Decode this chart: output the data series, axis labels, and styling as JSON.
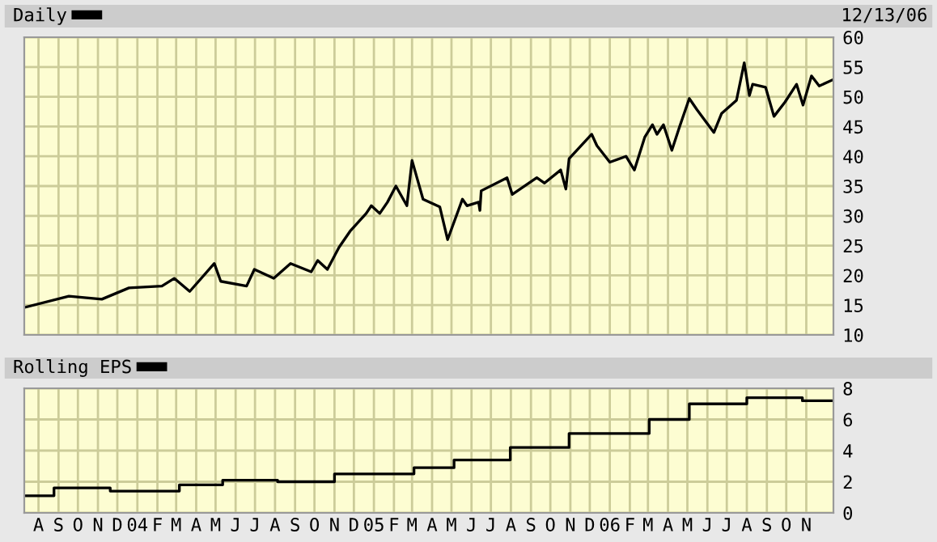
{
  "chart_data": [
    {
      "type": "line",
      "xlim": [
        "2003-07-10",
        "2006-12-13"
      ],
      "ylim": [
        10,
        60
      ],
      "yticks": [
        10,
        15,
        20,
        25,
        30,
        35,
        40,
        45,
        50,
        55,
        60
      ],
      "xticks": [
        {
          "value": "2003-08-01",
          "label": null
        },
        {
          "value": "2003-09-01",
          "label": null
        },
        {
          "value": "2003-10-01",
          "label": null
        },
        {
          "value": "2003-11-01",
          "label": null
        },
        {
          "value": "2003-12-01",
          "label": null
        },
        {
          "value": "2004-01-01",
          "label": null
        },
        {
          "value": "2004-02-01",
          "label": null
        },
        {
          "value": "2004-03-01",
          "label": null
        },
        {
          "value": "2004-04-01",
          "label": null
        },
        {
          "value": "2004-05-01",
          "label": null
        },
        {
          "value": "2004-06-01",
          "label": null
        },
        {
          "value": "2004-07-01",
          "label": null
        },
        {
          "value": "2004-08-01",
          "label": null
        },
        {
          "value": "2004-09-01",
          "label": null
        },
        {
          "value": "2004-10-01",
          "label": null
        },
        {
          "value": "2004-11-01",
          "label": null
        },
        {
          "value": "2004-12-01",
          "label": null
        },
        {
          "value": "2005-01-01",
          "label": null
        },
        {
          "value": "2005-02-01",
          "label": null
        },
        {
          "value": "2005-03-01",
          "label": null
        },
        {
          "value": "2005-04-01",
          "label": null
        },
        {
          "value": "2005-05-01",
          "label": null
        },
        {
          "value": "2005-06-01",
          "label": null
        },
        {
          "value": "2005-07-01",
          "label": null
        },
        {
          "value": "2005-08-01",
          "label": null
        },
        {
          "value": "2005-09-01",
          "label": null
        },
        {
          "value": "2005-10-01",
          "label": null
        },
        {
          "value": "2005-11-01",
          "label": null
        },
        {
          "value": "2005-12-01",
          "label": null
        },
        {
          "value": "2006-01-01",
          "label": null
        },
        {
          "value": "2006-02-01",
          "label": null
        },
        {
          "value": "2006-03-01",
          "label": null
        },
        {
          "value": "2006-04-01",
          "label": null
        },
        {
          "value": "2006-05-01",
          "label": null
        },
        {
          "value": "2006-06-01",
          "label": null
        },
        {
          "value": "2006-07-01",
          "label": null
        },
        {
          "value": "2006-08-01",
          "label": null
        },
        {
          "value": "2006-09-01",
          "label": null
        },
        {
          "value": "2006-10-01",
          "label": null
        },
        {
          "value": "2006-11-01",
          "label": null
        }
      ],
      "tick_labels": "y",
      "grid": true,
      "legend": "top left",
      "annotations": [
        "12/13/06"
      ],
      "series": [
        {
          "name": "Daily",
          "color": "#000000",
          "x": [
            "2003-07-10",
            "2003-09-17",
            "2003-11-07",
            "2003-12-19",
            "2004-02-08",
            "2004-02-27",
            "2004-03-22",
            "2004-04-29",
            "2004-05-09",
            "2004-06-18",
            "2004-06-30",
            "2004-07-30",
            "2004-08-25",
            "2004-09-26",
            "2004-10-06",
            "2004-10-21",
            "2004-11-08",
            "2004-11-25",
            "2004-12-20",
            "2004-12-28",
            "2005-01-10",
            "2005-01-22",
            "2005-02-04",
            "2005-02-21",
            "2005-03-01",
            "2005-03-18",
            "2005-04-13",
            "2005-04-25",
            "2005-05-18",
            "2005-05-25",
            "2005-06-12",
            "2005-06-14",
            "2005-06-16",
            "2005-07-26",
            "2005-08-03",
            "2005-09-10",
            "2005-09-22",
            "2005-10-17",
            "2005-10-25",
            "2005-10-30",
            "2005-12-04",
            "2005-12-12",
            "2006-01-01",
            "2006-01-26",
            "2006-02-08",
            "2006-02-24",
            "2006-03-08",
            "2006-03-15",
            "2006-03-25",
            "2006-04-07",
            "2006-04-19",
            "2006-05-04",
            "2006-05-16",
            "2006-06-11",
            "2006-06-23",
            "2006-07-16",
            "2006-07-28",
            "2006-08-05",
            "2006-08-10",
            "2006-08-30",
            "2006-09-12",
            "2006-09-29",
            "2006-10-17",
            "2006-10-27",
            "2006-11-09",
            "2006-11-21",
            "2006-12-13"
          ],
          "values": [
            14.6,
            16.5,
            16,
            17.9,
            18.2,
            19.5,
            17.3,
            22,
            19,
            18.2,
            21,
            19.5,
            22,
            20.6,
            22.5,
            21,
            24.7,
            27.4,
            30.4,
            31.7,
            30.4,
            32.3,
            35,
            31.7,
            39.3,
            32.8,
            31.5,
            26,
            32.8,
            31.7,
            32.3,
            30.9,
            34.2,
            36.4,
            33.6,
            36.4,
            35.5,
            37.7,
            34.5,
            39.6,
            43.7,
            41.8,
            39,
            40,
            37.7,
            43.2,
            45.3,
            43.7,
            45.3,
            41,
            45,
            49.7,
            47.8,
            44,
            47.2,
            49.4,
            55.7,
            50.2,
            52.1,
            51.6,
            46.7,
            49.1,
            52.1,
            48.6,
            53.5,
            51.8,
            52.9
          ]
        }
      ]
    },
    {
      "type": "step",
      "xlim": [
        "2003-07-10",
        "2006-12-13"
      ],
      "ylim": [
        0,
        8
      ],
      "yticks": [
        0,
        2,
        4,
        6,
        8
      ],
      "xticks": [
        {
          "value": "2003-08-01",
          "label": "A"
        },
        {
          "value": "2003-09-01",
          "label": "S"
        },
        {
          "value": "2003-10-01",
          "label": "O"
        },
        {
          "value": "2003-11-01",
          "label": "N"
        },
        {
          "value": "2003-12-01",
          "label": "D"
        },
        {
          "value": "2004-01-01",
          "label": "04"
        },
        {
          "value": "2004-02-01",
          "label": "F"
        },
        {
          "value": "2004-03-01",
          "label": "M"
        },
        {
          "value": "2004-04-01",
          "label": "A"
        },
        {
          "value": "2004-05-01",
          "label": "M"
        },
        {
          "value": "2004-06-01",
          "label": "J"
        },
        {
          "value": "2004-07-01",
          "label": "J"
        },
        {
          "value": "2004-08-01",
          "label": "A"
        },
        {
          "value": "2004-09-01",
          "label": "S"
        },
        {
          "value": "2004-10-01",
          "label": "O"
        },
        {
          "value": "2004-11-01",
          "label": "N"
        },
        {
          "value": "2004-12-01",
          "label": "D"
        },
        {
          "value": "2005-01-01",
          "label": "05"
        },
        {
          "value": "2005-02-01",
          "label": "F"
        },
        {
          "value": "2005-03-01",
          "label": "M"
        },
        {
          "value": "2005-04-01",
          "label": "A"
        },
        {
          "value": "2005-05-01",
          "label": "M"
        },
        {
          "value": "2005-06-01",
          "label": "J"
        },
        {
          "value": "2005-07-01",
          "label": "J"
        },
        {
          "value": "2005-08-01",
          "label": "A"
        },
        {
          "value": "2005-09-01",
          "label": "S"
        },
        {
          "value": "2005-10-01",
          "label": "O"
        },
        {
          "value": "2005-11-01",
          "label": "N"
        },
        {
          "value": "2005-12-01",
          "label": "D"
        },
        {
          "value": "2006-01-01",
          "label": "06"
        },
        {
          "value": "2006-02-01",
          "label": "F"
        },
        {
          "value": "2006-03-01",
          "label": "M"
        },
        {
          "value": "2006-04-01",
          "label": "A"
        },
        {
          "value": "2006-05-01",
          "label": "M"
        },
        {
          "value": "2006-06-01",
          "label": "J"
        },
        {
          "value": "2006-07-01",
          "label": "J"
        },
        {
          "value": "2006-08-01",
          "label": "A"
        },
        {
          "value": "2006-09-01",
          "label": "S"
        },
        {
          "value": "2006-10-01",
          "label": "O"
        },
        {
          "value": "2006-11-01",
          "label": "N"
        }
      ],
      "grid": true,
      "legend": "top left",
      "series": [
        {
          "name": "Rolling EPS",
          "color": "#000000",
          "x": [
            "2003-07-10",
            "2003-08-25",
            "2003-11-20",
            "2004-03-06",
            "2004-05-12",
            "2004-08-05",
            "2004-11-01",
            "2005-03-04",
            "2005-05-05",
            "2005-07-31",
            "2005-10-30",
            "2006-03-03",
            "2006-05-04",
            "2006-08-01",
            "2006-10-26",
            "2006-12-13"
          ],
          "values": [
            1.1,
            1.6,
            1.4,
            1.8,
            2.1,
            2.0,
            2.5,
            2.9,
            3.4,
            4.2,
            5.1,
            6.0,
            7.0,
            7.4,
            7.2,
            7.2
          ]
        }
      ]
    }
  ]
}
